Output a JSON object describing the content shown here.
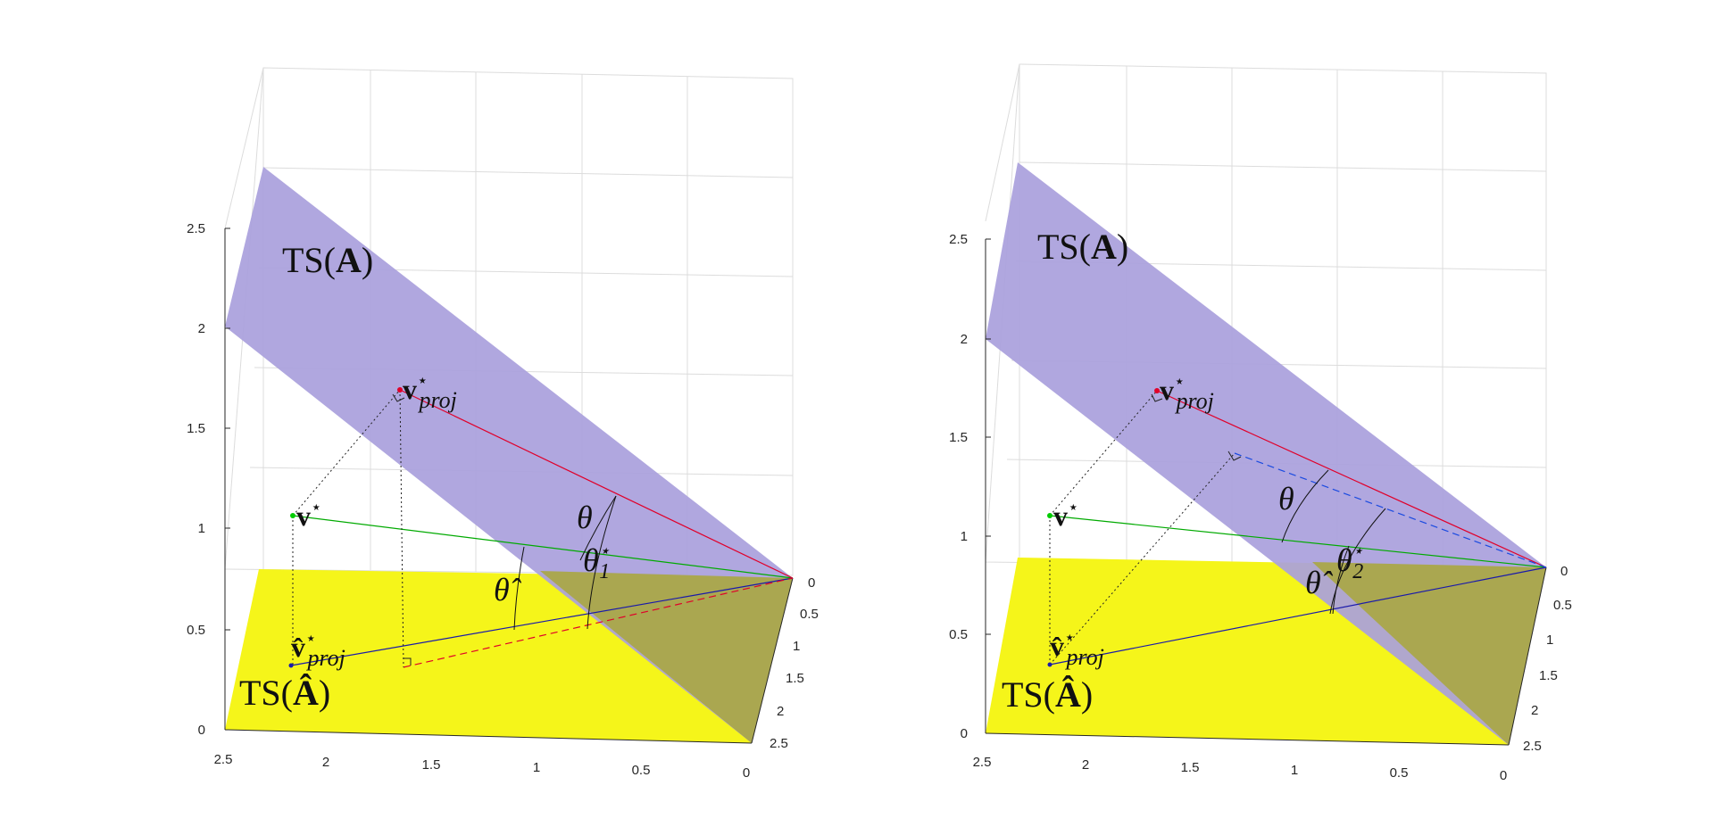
{
  "colors": {
    "plane_A": "#a99fdc",
    "plane_A_hat": "#f5f51a",
    "overlap": "#aaa750",
    "v_star": "#00cc00",
    "v_proj": "#e0002a",
    "v_hat_proj": "#1a1aaa",
    "dashed_red": "#e0002a",
    "dashed_blue": "#1a4ae0"
  },
  "panels": [
    {
      "z_ticks": [
        "0",
        "0.5",
        "1",
        "1.5",
        "2",
        "2.5"
      ],
      "x_ticks": [
        "2.5",
        "2",
        "1.5",
        "1",
        "0.5",
        "0"
      ],
      "y_ticks": [
        "0",
        "0.5",
        "1",
        "1.5",
        "2",
        "2.5"
      ],
      "label_TS_A_pre": "TS(",
      "label_TS_A_bold": "A",
      "label_TS_A_post": ")",
      "label_TS_Ahat_pre": "TS(",
      "label_TS_Ahat_bold": "Â",
      "label_TS_Ahat_post": ")",
      "label_v": "v",
      "label_star": "⋆",
      "label_proj": "proj",
      "label_vhat": "v̂",
      "label_theta": "θ",
      "label_theta_hat": "θ̂",
      "label_theta_star_sub": "1"
    },
    {
      "z_ticks": [
        "0",
        "0.5",
        "1",
        "1.5",
        "2",
        "2.5"
      ],
      "x_ticks": [
        "2.5",
        "2",
        "1.5",
        "1",
        "0.5",
        "0"
      ],
      "y_ticks": [
        "0",
        "0.5",
        "1",
        "1.5",
        "2",
        "2.5"
      ],
      "label_TS_A_pre": "TS(",
      "label_TS_A_bold": "A",
      "label_TS_A_post": ")",
      "label_TS_Ahat_pre": "TS(",
      "label_TS_Ahat_bold": "Â",
      "label_TS_Ahat_post": ")",
      "label_v": "v",
      "label_star": "⋆",
      "label_proj": "proj",
      "label_vhat": "v̂",
      "label_theta": "θ",
      "label_theta_hat": "θ̂",
      "label_theta_star_sub": "2"
    }
  ]
}
